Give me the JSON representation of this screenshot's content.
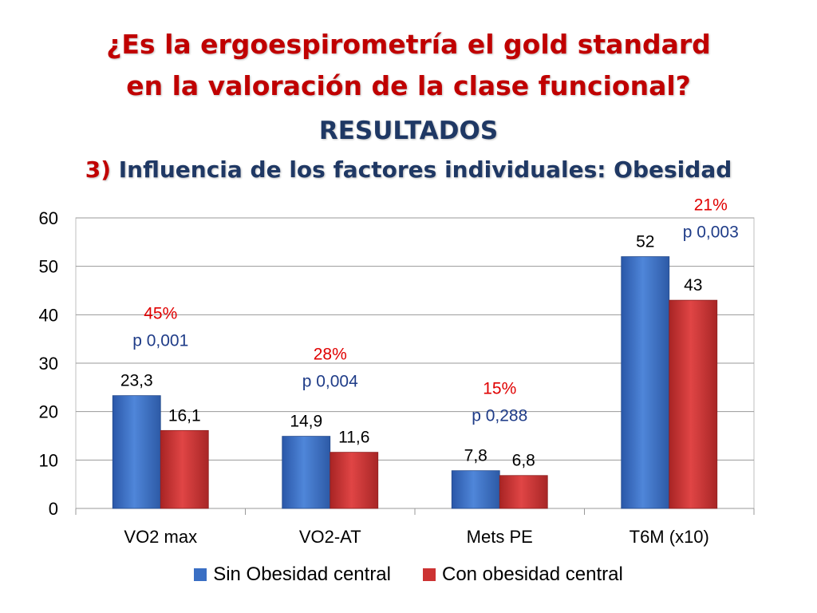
{
  "title": {
    "line1": "¿Es la ergoespirometría el gold standard",
    "line2": "en la valoración de la clase funcional?"
  },
  "section": "RESULTADOS",
  "subtitle": {
    "number": "3)",
    "text": "Influencia de los factores individuales: Obesidad"
  },
  "colors": {
    "series1": "#3a6fc4",
    "series2": "#cc3333",
    "pct": "#e00000",
    "pvalue": "#1f3c88",
    "title": "#c00000",
    "heading": "#1f3864"
  },
  "chart_data": {
    "type": "bar",
    "categories": [
      "VO2 max",
      "VO2-AT",
      "Mets PE",
      "T6M (x10)"
    ],
    "series": [
      {
        "name": "Sin Obesidad central",
        "values": [
          23.3,
          14.9,
          7.8,
          52
        ],
        "labels": [
          "23,3",
          "14,9",
          "7,8",
          "52"
        ]
      },
      {
        "name": "Con obesidad central",
        "values": [
          16.1,
          11.6,
          6.8,
          43
        ],
        "labels": [
          "16,1",
          "11,6",
          "6,8",
          "43"
        ]
      }
    ],
    "annotations": [
      {
        "category": "VO2 max",
        "percent": "45%",
        "pvalue": "p 0,001"
      },
      {
        "category": "VO2-AT",
        "percent": "28%",
        "pvalue": "p 0,004"
      },
      {
        "category": "Mets PE",
        "percent": "15%",
        "pvalue": "p 0,288"
      },
      {
        "category": "T6M (x10)",
        "percent": "21%",
        "pvalue": "p 0,003"
      }
    ],
    "ylim": [
      0,
      60
    ],
    "yticks": [
      "0",
      "10",
      "20",
      "30",
      "40",
      "50",
      "60"
    ],
    "grid": true,
    "legend_position": "bottom"
  }
}
